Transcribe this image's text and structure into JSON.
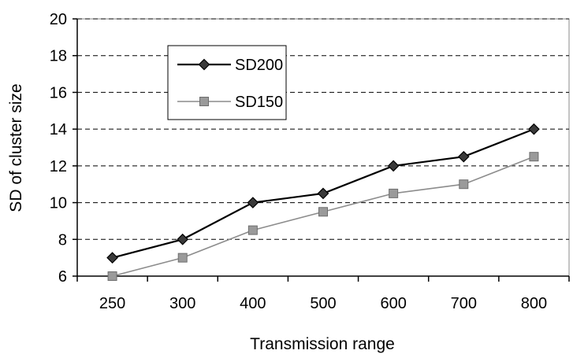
{
  "chart_data": {
    "type": "line",
    "title": "",
    "xlabel": "Transmission range",
    "ylabel": "SD of cluster size",
    "categories": [
      "250",
      "300",
      "400",
      "500",
      "600",
      "700",
      "800"
    ],
    "ylim": [
      6,
      20
    ],
    "yticks": [
      6,
      8,
      10,
      12,
      14,
      16,
      18,
      20
    ],
    "grid": "horizontal dashed",
    "legend_position": "top-left",
    "series": [
      {
        "name": "SD200",
        "values": [
          7,
          8,
          10,
          10.5,
          12,
          12.5,
          14
        ],
        "color": "#000000",
        "marker": "diamond"
      },
      {
        "name": "SD150",
        "values": [
          6,
          7,
          8.5,
          9.5,
          10.5,
          11,
          12.5
        ],
        "color": "#8c8c8c",
        "marker": "square"
      }
    ]
  }
}
